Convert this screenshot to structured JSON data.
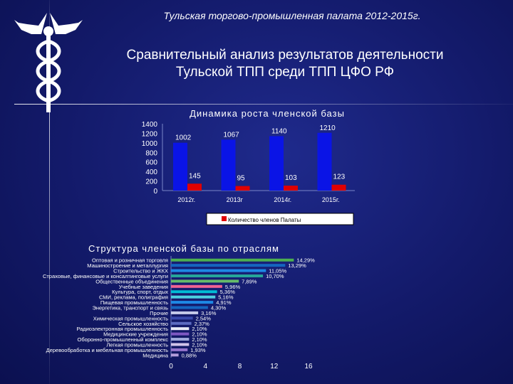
{
  "header": {
    "top_title": "Тульская торгово-промышленная палата 2012-2015г.",
    "main_title_line1": "Сравнительный анализ результатов деятельности",
    "main_title_line2": "Тульской  ТПП среди ТПП ЦФО РФ"
  },
  "logo": {
    "icon": "caduceus-icon"
  },
  "chart_data": [
    {
      "type": "bar",
      "title": "Динамика роста членской базы",
      "categories": [
        "2012г.",
        "2013г",
        "2014г.",
        "2015г."
      ],
      "series": [
        {
          "values": [
            1002,
            1067,
            1140,
            1210
          ],
          "color": "#0a14e6"
        },
        {
          "name": "Количество членов Палаты",
          "values": [
            145,
            95,
            103,
            123
          ],
          "color": "#e00000"
        }
      ],
      "ylim": [
        0,
        1400
      ],
      "yticks": [
        0,
        200,
        400,
        600,
        800,
        1000,
        1200,
        1400
      ],
      "legend": "bottom"
    },
    {
      "type": "bar",
      "orientation": "horizontal",
      "title": "Структура членской базы по отраслям",
      "categories": [
        "Оптовая и розничная торговля",
        "Машиностроение и металлургия",
        "Строительство и ЖКХ",
        "Страховые, финансовые и консалтинговые услуги",
        "Общественные объединения",
        "Учебные заведения",
        "Культура, спорт, отдых",
        "СМИ, реклама, полиграфия",
        "Пищевая промышленность",
        "Энергетика, транспорт и связь",
        "Прочие",
        "Химическая промышленность",
        "Сельское хозяйство",
        "Радиоэлектронная промышленность",
        "Медицинские учреждения",
        "Оборонно-промышленный комплекс",
        "Легкая промышленность",
        "Деревообработка и мебельная промышленность",
        "Медицина"
      ],
      "values": [
        14.29,
        13.29,
        11.05,
        10.7,
        7.89,
        5.96,
        5.36,
        5.16,
        4.91,
        4.3,
        3.16,
        2.54,
        2.37,
        2.1,
        2.1,
        2.1,
        2.1,
        1.93,
        0.88
      ],
      "value_labels": [
        "14,29%",
        "13,29%",
        "11,05%",
        "10,70%",
        "7,89%",
        "5,96%",
        "5,36%",
        "5,16%",
        "4,91%",
        "4,30%",
        "3,16%",
        "2,54%",
        "2,37%",
        "2,10%",
        "2,10%",
        "2,10%",
        "2,10%",
        "1,93%",
        "0,88%"
      ],
      "colors": [
        "#4caf50",
        "#1565c0",
        "#1e88e5",
        "#26a69a",
        "#66bb6a",
        "#f06292",
        "#00bcd4",
        "#4dd0e1",
        "#1e88e5",
        "#1565c0",
        "#c5cae9",
        "#3949ab",
        "#5c6bc0",
        "#e8eaf6",
        "#7e57c2",
        "#9fa8da",
        "#d1c4e9",
        "#9575cd",
        "#b39ddb"
      ],
      "xlim": [
        0,
        16
      ],
      "xticks": [
        0,
        4,
        8,
        12,
        16
      ]
    }
  ]
}
